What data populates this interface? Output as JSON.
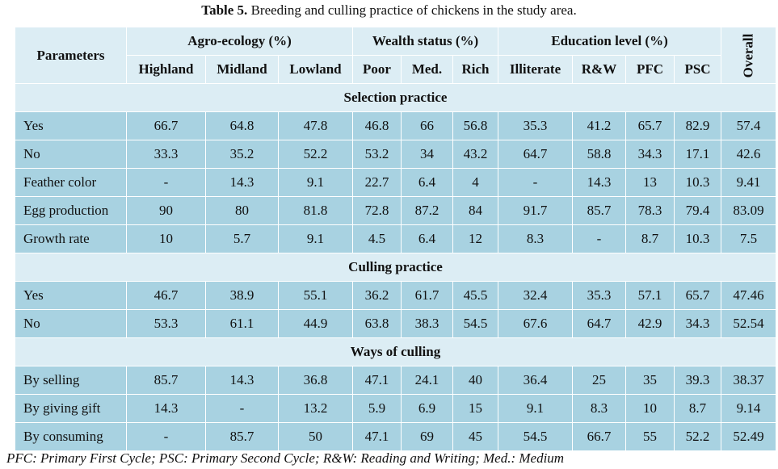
{
  "caption": {
    "label": "Table 5.",
    "text": " Breeding and culling practice of chickens in the study area."
  },
  "header": {
    "parameters": "Parameters",
    "groups": [
      {
        "label": "Agro-ecology (%)"
      },
      {
        "label": "Wealth status (%)"
      },
      {
        "label": "Education level (%)"
      }
    ],
    "overall": "Overall",
    "columns": [
      "Highland",
      "Midland",
      "Lowland",
      "Poor",
      "Med.",
      "Rich",
      "Illiterate",
      "R&W",
      "PFC",
      "PSC"
    ]
  },
  "sections": [
    {
      "title": "Selection practice",
      "rows": [
        {
          "label": "Yes",
          "values": [
            "66.7",
            "64.8",
            "47.8",
            "46.8",
            "66",
            "56.8",
            "35.3",
            "41.2",
            "65.7",
            "82.9",
            "57.4"
          ]
        },
        {
          "label": "No",
          "values": [
            "33.3",
            "35.2",
            "52.2",
            "53.2",
            "34",
            "43.2",
            "64.7",
            "58.8",
            "34.3",
            "17.1",
            "42.6"
          ]
        },
        {
          "label": "Feather color",
          "values": [
            "-",
            "14.3",
            "9.1",
            "22.7",
            "6.4",
            "4",
            "-",
            "14.3",
            "13",
            "10.3",
            "9.41"
          ]
        },
        {
          "label": "Egg production",
          "values": [
            "90",
            "80",
            "81.8",
            "72.8",
            "87.2",
            "84",
            "91.7",
            "85.7",
            "78.3",
            "79.4",
            "83.09"
          ]
        },
        {
          "label": "Growth rate",
          "values": [
            "10",
            "5.7",
            "9.1",
            "4.5",
            "6.4",
            "12",
            "8.3",
            "-",
            "8.7",
            "10.3",
            "7.5"
          ]
        }
      ]
    },
    {
      "title": "Culling practice",
      "rows": [
        {
          "label": "Yes",
          "values": [
            "46.7",
            "38.9",
            "55.1",
            "36.2",
            "61.7",
            "45.5",
            "32.4",
            "35.3",
            "57.1",
            "65.7",
            "47.46"
          ]
        },
        {
          "label": "No",
          "values": [
            "53.3",
            "61.1",
            "44.9",
            "63.8",
            "38.3",
            "54.5",
            "67.6",
            "64.7",
            "42.9",
            "34.3",
            "52.54"
          ]
        }
      ]
    },
    {
      "title": "Ways of culling",
      "rows": [
        {
          "label": "By selling",
          "values": [
            "85.7",
            "14.3",
            "36.8",
            "47.1",
            "24.1",
            "40",
            "36.4",
            "25",
            "35",
            "39.3",
            "38.37"
          ]
        },
        {
          "label": "By giving gift",
          "values": [
            "14.3",
            "-",
            "13.2",
            "5.9",
            "6.9",
            "15",
            "9.1",
            "8.3",
            "10",
            "8.7",
            "9.14"
          ]
        },
        {
          "label": "By consuming",
          "values": [
            "-",
            "85.7",
            "50",
            "47.1",
            "69",
            "45",
            "54.5",
            "66.7",
            "55",
            "52.2",
            "52.49"
          ]
        }
      ]
    }
  ],
  "footnote": "PFC: Primary First Cycle; PSC: Primary Second Cycle; R&W: Reading and Writing; Med.: Medium"
}
